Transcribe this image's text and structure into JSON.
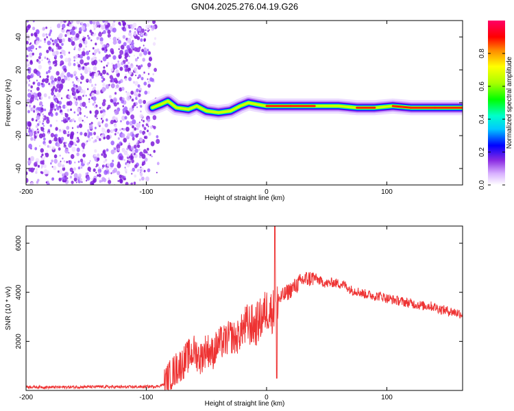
{
  "title": "GN04.2025.276.04.19.G26",
  "chart_data": [
    {
      "type": "heatmap",
      "xlabel": "Height of straight line (km)",
      "ylabel": "Frequency (Hz)",
      "xlim": [
        -200,
        163
      ],
      "ylim": [
        -50,
        50
      ],
      "x_ticks": [
        -200,
        -100,
        0,
        100
      ],
      "x_tick_labels": [
        "-200",
        "-100",
        "0",
        "100"
      ],
      "y_ticks": [
        -40,
        -20,
        0,
        20,
        40
      ],
      "y_tick_labels": [
        "-40",
        "-20",
        "0",
        "20",
        "40"
      ],
      "noise_region_x": [
        -200,
        -90
      ],
      "ridge": {
        "name": "Dominant frequency ridge",
        "points": [
          {
            "x": -95,
            "y": -3
          },
          {
            "x": -88,
            "y": -1
          },
          {
            "x": -82,
            "y": 1
          },
          {
            "x": -75,
            "y": -3
          },
          {
            "x": -65,
            "y": -4
          },
          {
            "x": -58,
            "y": -2
          },
          {
            "x": -50,
            "y": -5
          },
          {
            "x": -40,
            "y": -6
          },
          {
            "x": -30,
            "y": -5
          },
          {
            "x": -22,
            "y": -2
          },
          {
            "x": -15,
            "y": 0
          },
          {
            "x": -8,
            "y": -1
          },
          {
            "x": 0,
            "y": -2
          },
          {
            "x": 20,
            "y": -2
          },
          {
            "x": 40,
            "y": -2
          },
          {
            "x": 60,
            "y": -2
          },
          {
            "x": 75,
            "y": -3
          },
          {
            "x": 90,
            "y": -3
          },
          {
            "x": 105,
            "y": -2
          },
          {
            "x": 120,
            "y": -3
          },
          {
            "x": 140,
            "y": -3
          },
          {
            "x": 163,
            "y": -3
          }
        ]
      },
      "colorbar": {
        "label": "Normalized spectral amplitude",
        "range": [
          0,
          1
        ],
        "ticks": [
          0.0,
          0.2,
          0.4,
          0.6,
          0.8
        ],
        "tick_labels": [
          "0.0",
          "0.2",
          "0.4",
          "0.6",
          "0.8"
        ]
      }
    },
    {
      "type": "line",
      "xlabel": "Height of straight line (km)",
      "ylabel": "SNR (10 * v/v)",
      "xlim": [
        -200,
        163
      ],
      "ylim": [
        0,
        6700
      ],
      "x_ticks": [
        -200,
        -100,
        0,
        100
      ],
      "x_tick_labels": [
        "-200",
        "-100",
        "0",
        "100"
      ],
      "y_ticks": [
        2000,
        4000,
        6000
      ],
      "y_tick_labels": [
        "2000",
        "4000",
        "6000"
      ],
      "color": "#ee3333",
      "series": [
        {
          "name": "SNR",
          "x": [
            -200,
            -180,
            -160,
            -140,
            -120,
            -100,
            -90,
            -85,
            -80,
            -75,
            -70,
            -65,
            -60,
            -55,
            -50,
            -45,
            -40,
            -35,
            -30,
            -25,
            -20,
            -15,
            -10,
            -5,
            0,
            5,
            8,
            10,
            15,
            20,
            25,
            30,
            35,
            40,
            45,
            50,
            55,
            60,
            65,
            70,
            75,
            80,
            85,
            90,
            95,
            100,
            105,
            110,
            115,
            120,
            125,
            130,
            135,
            140,
            145,
            150,
            155,
            160,
            163
          ],
          "y": [
            150,
            130,
            140,
            150,
            140,
            150,
            170,
            250,
            600,
            900,
            1100,
            1400,
            1600,
            1300,
            1700,
            1500,
            1900,
            2000,
            2200,
            2100,
            2500,
            2700,
            2600,
            2900,
            3300,
            3200,
            3600,
            3700,
            3900,
            4100,
            4300,
            4500,
            4550,
            4600,
            4450,
            4350,
            4400,
            4350,
            4300,
            4100,
            4050,
            3950,
            3900,
            3850,
            3850,
            3750,
            3700,
            3650,
            3600,
            3550,
            3500,
            3450,
            3450,
            3400,
            3300,
            3250,
            3200,
            3150,
            3100
          ]
        }
      ]
    }
  ]
}
